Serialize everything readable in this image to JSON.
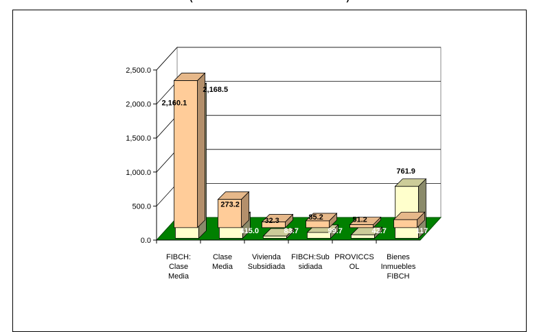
{
  "title": "(                                                              )",
  "chart_data": {
    "type": "bar",
    "categories": [
      [
        "FIBCH:",
        "Clase",
        "Media"
      ],
      [
        "Clase",
        "Media"
      ],
      [
        "Vivienda",
        "Subsidiada"
      ],
      [
        "FIBCH:Sub",
        "sidiada"
      ],
      [
        "PROVICCS",
        "OL"
      ],
      [
        "Bienes",
        "Inmuebles",
        "FIBCH"
      ]
    ],
    "series": [
      {
        "values": [
          2160.1,
          415.0,
          83.7,
          99.7,
          42.7,
          117.0
        ],
        "labels": [
          "2,160.1",
          "415.0",
          "83.7",
          "99.7",
          "42.7",
          "117."
        ]
      },
      {
        "values": [
          2168.5,
          273.2,
          32.3,
          85.2,
          51.2,
          761.9
        ],
        "labels": [
          "2,168.5",
          "273.2",
          "32.3",
          "85.2",
          "51.2",
          "761.9"
        ]
      }
    ],
    "yticks": [
      "0.0",
      "500.0",
      "1,000.0",
      "1,500.0",
      "2,000.0",
      "2,500.0"
    ],
    "ylim": [
      0,
      2500
    ],
    "grid": true,
    "colors": {
      "series0_front": "#ffcc99",
      "series0_side": "#b38f6b",
      "series0_top": "#e6b88a",
      "series1_front": "#ffffcc",
      "series1_side": "#8a8a6a",
      "series1_top": "#cccc99",
      "floor": "#008000",
      "floor_edge": "#004d00"
    }
  }
}
